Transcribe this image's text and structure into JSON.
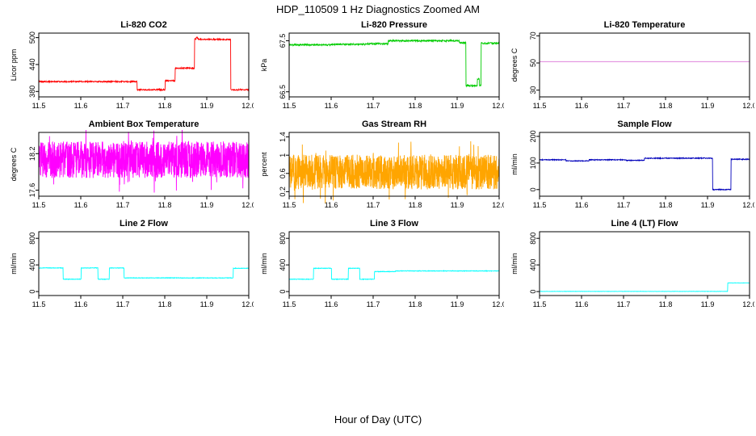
{
  "figure": {
    "title": "HDP_110509  1 Hz Diagnostics Zoomed AM",
    "xlabel": "Hour of Day (UTC)"
  },
  "chart_data": [
    {
      "type": "line",
      "title": "Li-820 CO2",
      "ylabel": "Licor ppm",
      "color": "#FF0000",
      "xlim": [
        11.5,
        12.0
      ],
      "ylim": [
        368,
        510
      ],
      "xticks": [
        11.5,
        11.6,
        11.7,
        11.8,
        11.9,
        12.0
      ],
      "yticks": [
        380,
        440,
        500
      ],
      "series": [
        {
          "name": "co2",
          "mode": "steps",
          "jitter": 1.4,
          "seed": 3,
          "points": [
            [
              11.5,
              402
            ],
            [
              11.732,
              402
            ],
            [
              11.734,
              384
            ],
            [
              11.798,
              384
            ],
            [
              11.801,
              404
            ],
            [
              11.822,
              404
            ],
            [
              11.825,
              432
            ],
            [
              11.868,
              432
            ],
            [
              11.871,
              497
            ],
            [
              11.875,
              500
            ],
            [
              11.879,
              496
            ],
            [
              11.954,
              496
            ],
            [
              11.957,
              384
            ],
            [
              12.0,
              384
            ]
          ]
        }
      ]
    },
    {
      "type": "line",
      "title": "Li-820 Pressure",
      "ylabel": "kPa",
      "color": "#00CC00",
      "xlim": [
        11.5,
        12.0
      ],
      "ylim": [
        66.4,
        67.65
      ],
      "xticks": [
        11.5,
        11.6,
        11.7,
        11.8,
        11.9,
        12.0
      ],
      "yticks": [
        66.5,
        67.5
      ],
      "series": [
        {
          "name": "pressure",
          "mode": "steps",
          "jitter": 0.015,
          "seed": 5,
          "points": [
            [
              11.5,
              67.42
            ],
            [
              11.6,
              67.43
            ],
            [
              11.68,
              67.44
            ],
            [
              11.732,
              67.44
            ],
            [
              11.736,
              67.5
            ],
            [
              11.9,
              67.5
            ],
            [
              11.905,
              67.46
            ],
            [
              11.917,
              67.46
            ],
            [
              11.921,
              66.62
            ],
            [
              11.944,
              66.62
            ],
            [
              11.948,
              66.75
            ],
            [
              11.953,
              66.62
            ],
            [
              11.957,
              67.45
            ],
            [
              12.0,
              67.46
            ]
          ]
        }
      ]
    },
    {
      "type": "line",
      "title": "Li-820 Temperature",
      "ylabel": "degrees C",
      "color": "#DA70D6",
      "xlim": [
        11.5,
        12.0
      ],
      "ylim": [
        25,
        72
      ],
      "xticks": [
        11.5,
        11.6,
        11.7,
        11.8,
        11.9,
        12.0
      ],
      "yticks": [
        30,
        50,
        70
      ],
      "series": [
        {
          "name": "temperature",
          "mode": "steps",
          "jitter": 0,
          "seed": 7,
          "points": [
            [
              11.5,
              51
            ],
            [
              12.0,
              51
            ]
          ]
        }
      ]
    },
    {
      "type": "line",
      "title": "Ambient Box Temperature",
      "ylabel": "degrees C",
      "color": "#FF00FF",
      "xlim": [
        11.5,
        12.0
      ],
      "ylim": [
        17.5,
        18.55
      ],
      "xticks": [
        11.5,
        11.6,
        11.7,
        11.8,
        11.9,
        12.0
      ],
      "yticks": [
        17.6,
        18.2
      ],
      "series": [
        {
          "name": "box-temp",
          "mode": "noise",
          "baseline": 18.1,
          "amplitude": 0.3,
          "n": 1500,
          "seed": 11
        }
      ]
    },
    {
      "type": "line",
      "title": "Gas Stream RH",
      "ylabel": "percent",
      "color": "#FFA500",
      "xlim": [
        11.5,
        12.0
      ],
      "ylim": [
        0.1,
        1.5
      ],
      "xticks": [
        11.5,
        11.6,
        11.7,
        11.8,
        11.9,
        12.0
      ],
      "yticks": [
        0.2,
        0.6,
        1.0,
        1.4
      ],
      "series": [
        {
          "name": "rh",
          "mode": "noise",
          "baseline": 0.63,
          "amplitude": 0.38,
          "n": 1500,
          "seed": 13
        }
      ]
    },
    {
      "type": "line",
      "title": "Sample Flow",
      "ylabel": "ml/min",
      "color": "#0000BB",
      "xlim": [
        11.5,
        12.0
      ],
      "ylim": [
        -25,
        215
      ],
      "xticks": [
        11.5,
        11.6,
        11.7,
        11.8,
        11.9,
        12.0
      ],
      "yticks": [
        0,
        100,
        200
      ],
      "series": [
        {
          "name": "sample-flow",
          "mode": "steps",
          "jitter": 1.6,
          "seed": 17,
          "points": [
            [
              11.5,
              112
            ],
            [
              11.56,
              112
            ],
            [
              11.563,
              108
            ],
            [
              11.615,
              108
            ],
            [
              11.618,
              112
            ],
            [
              11.7,
              112
            ],
            [
              11.705,
              110
            ],
            [
              11.745,
              110
            ],
            [
              11.75,
              118
            ],
            [
              11.908,
              118
            ],
            [
              11.912,
              0
            ],
            [
              11.952,
              0
            ],
            [
              11.956,
              114
            ],
            [
              12.0,
              114
            ]
          ]
        }
      ]
    },
    {
      "type": "line",
      "title": "Line 2 Flow",
      "ylabel": "ml/min",
      "color": "#00FFFF",
      "xlim": [
        11.5,
        12.0
      ],
      "ylim": [
        -60,
        900
      ],
      "xticks": [
        11.5,
        11.6,
        11.7,
        11.8,
        11.9,
        12.0
      ],
      "yticks": [
        0,
        400,
        800
      ],
      "series": [
        {
          "name": "line2-flow",
          "mode": "steps",
          "jitter": 4,
          "seed": 19,
          "points": [
            [
              11.5,
              355
            ],
            [
              11.555,
              355
            ],
            [
              11.558,
              185
            ],
            [
              11.598,
              185
            ],
            [
              11.601,
              355
            ],
            [
              11.638,
              355
            ],
            [
              11.641,
              185
            ],
            [
              11.665,
              185
            ],
            [
              11.668,
              355
            ],
            [
              11.7,
              355
            ],
            [
              11.703,
              205
            ],
            [
              11.96,
              205
            ],
            [
              11.963,
              350
            ],
            [
              12.0,
              350
            ]
          ]
        }
      ]
    },
    {
      "type": "line",
      "title": "Line 3 Flow",
      "ylabel": "ml/min",
      "color": "#00FFFF",
      "xlim": [
        11.5,
        12.0
      ],
      "ylim": [
        -60,
        900
      ],
      "xticks": [
        11.5,
        11.6,
        11.7,
        11.8,
        11.9,
        12.0
      ],
      "yticks": [
        0,
        400,
        800
      ],
      "series": [
        {
          "name": "line3-flow",
          "mode": "steps",
          "jitter": 4,
          "seed": 23,
          "points": [
            [
              11.5,
              185
            ],
            [
              11.555,
              185
            ],
            [
              11.558,
              350
            ],
            [
              11.598,
              350
            ],
            [
              11.601,
              185
            ],
            [
              11.638,
              185
            ],
            [
              11.641,
              350
            ],
            [
              11.665,
              350
            ],
            [
              11.668,
              185
            ],
            [
              11.7,
              185
            ],
            [
              11.703,
              300
            ],
            [
              11.75,
              300
            ],
            [
              11.753,
              310
            ],
            [
              12.0,
              310
            ]
          ]
        }
      ]
    },
    {
      "type": "line",
      "title": "Line 4 (LT) Flow",
      "ylabel": "ml/min",
      "color": "#00FFFF",
      "xlim": [
        11.5,
        12.0
      ],
      "ylim": [
        -60,
        900
      ],
      "xticks": [
        11.5,
        11.6,
        11.7,
        11.8,
        11.9,
        12.0
      ],
      "yticks": [
        0,
        400,
        800
      ],
      "series": [
        {
          "name": "line4-flow",
          "mode": "steps",
          "jitter": 2,
          "seed": 29,
          "points": [
            [
              11.5,
              2
            ],
            [
              11.945,
              2
            ],
            [
              11.948,
              130
            ],
            [
              12.0,
              130
            ]
          ]
        }
      ]
    }
  ]
}
